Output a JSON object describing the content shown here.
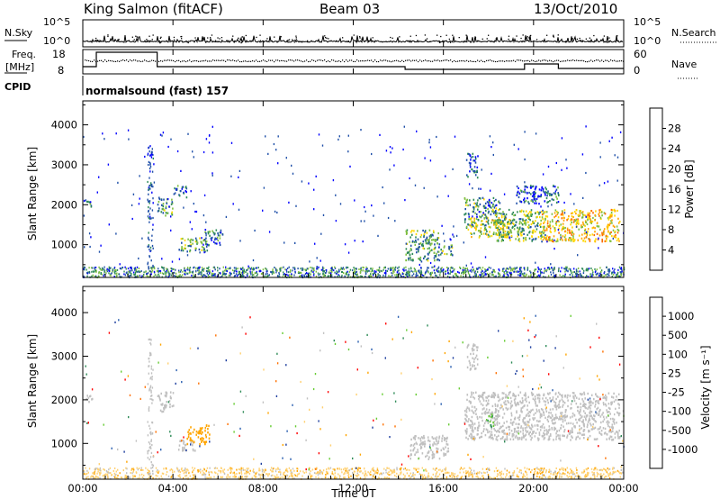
{
  "header": {
    "station": "King Salmon (fitACF)",
    "beam": "Beam 03",
    "date": "13/Oct/2010"
  },
  "top_panels": {
    "nsky_label": "N.Sky",
    "nsky_ticks": [
      "10^5",
      "10^0"
    ],
    "nsearch_label": "N.Search",
    "nsearch_ticks": [
      "10^5",
      "10^0"
    ],
    "freq_label_line1": "Freq.",
    "freq_label_line2": "[MHz]",
    "freq_ticks": [
      "18",
      "8"
    ],
    "nave_label": "Nave",
    "nave_ticks": [
      "60",
      "0"
    ],
    "cpid_label": "CPID",
    "cpid_value": "normalsound (fast) 157"
  },
  "colors": {
    "power_scale": [
      "#0000ff",
      "#1f4fa8",
      "#2e8b57",
      "#7fbf3f",
      "#ffd700",
      "#ffa500",
      "#ff6a00",
      "#ff0000"
    ],
    "velocity_scale": [
      "#1f3f9f",
      "#2a5fb0",
      "#2e8b57",
      "#66cc33",
      "#c0c0c0",
      "#ffd070",
      "#ffa500",
      "#ff7000",
      "#ff0000"
    ],
    "ground_scatter": "#c0c0c0"
  },
  "chart_data": [
    {
      "type": "heatmap",
      "name": "power-panel",
      "ylabel": "Slant Range [km]",
      "yticks": [
        "4000",
        "3000",
        "2000",
        "1000"
      ],
      "colorbar_label": "Power [dB]",
      "colorbar_ticks": [
        "28",
        "24",
        "20",
        "16",
        "12",
        "8",
        "4"
      ],
      "blobs": [
        {
          "t0": 0.1,
          "t1": 0.4,
          "r0": 1950,
          "r1": 2150,
          "v": 8
        },
        {
          "t0": 3.3,
          "t1": 4.0,
          "r0": 1750,
          "r1": 2200,
          "v": 10
        },
        {
          "t0": 4.0,
          "t1": 4.6,
          "r0": 2200,
          "r1": 2500,
          "v": 6
        },
        {
          "t0": 4.2,
          "t1": 5.5,
          "r0": 850,
          "r1": 1200,
          "v": 12
        },
        {
          "t0": 5.4,
          "t1": 6.2,
          "r0": 1000,
          "r1": 1400,
          "v": 8
        },
        {
          "t0": 14.3,
          "t1": 15.8,
          "r0": 600,
          "r1": 1400,
          "v": 11
        },
        {
          "t0": 15.8,
          "t1": 16.4,
          "r0": 750,
          "r1": 1050,
          "v": 12
        },
        {
          "t0": 16.9,
          "t1": 18.5,
          "r0": 1500,
          "r1": 2200,
          "v": 10
        },
        {
          "t0": 17.0,
          "t1": 19.0,
          "r0": 1200,
          "r1": 1700,
          "v": 15
        },
        {
          "t0": 18.2,
          "t1": 20.5,
          "r0": 1100,
          "r1": 1900,
          "v": 13
        },
        {
          "t0": 20.3,
          "t1": 23.8,
          "r0": 1100,
          "r1": 1900,
          "v": 19
        },
        {
          "t0": 19.2,
          "t1": 21.2,
          "r0": 2050,
          "r1": 2500,
          "v": 6
        },
        {
          "t0": 17.0,
          "t1": 17.5,
          "r0": 2700,
          "r1": 3300,
          "v": 5
        }
      ]
    },
    {
      "type": "heatmap",
      "name": "velocity-panel",
      "ylabel": "Slant Range [km]",
      "yticks": [
        "4000",
        "3000",
        "2000",
        "1000"
      ],
      "colorbar_label": "Velocity [m s⁻¹]",
      "colorbar_ticks": [
        "1000",
        "500",
        "100",
        "25",
        "-25",
        "-100",
        "-500",
        "-1000"
      ],
      "blobs": [
        {
          "t0": 0.1,
          "t1": 0.4,
          "r0": 1950,
          "r1": 2150,
          "v": 0
        },
        {
          "t0": 3.3,
          "t1": 4.0,
          "r0": 1750,
          "r1": 2200,
          "v": 0
        },
        {
          "t0": 4.2,
          "t1": 5.0,
          "r0": 850,
          "r1": 1100,
          "v": 0
        },
        {
          "t0": 4.6,
          "t1": 5.6,
          "r0": 1000,
          "r1": 1450,
          "v": -200
        },
        {
          "t0": 14.5,
          "t1": 16.2,
          "r0": 650,
          "r1": 1200,
          "v": 0
        },
        {
          "t0": 16.9,
          "t1": 23.8,
          "r0": 1100,
          "r1": 2200,
          "v": 0
        },
        {
          "t0": 17.9,
          "t1": 18.2,
          "r0": 1400,
          "r1": 1700,
          "v": 150
        },
        {
          "t0": 17.0,
          "t1": 17.5,
          "r0": 2700,
          "r1": 3300,
          "v": 0
        }
      ]
    }
  ],
  "xaxis": {
    "label": "Time UT",
    "ticks": [
      "00:00",
      "04:00",
      "08:00",
      "12:00",
      "16:00",
      "20:00",
      "00:00"
    ],
    "range_hours": [
      0,
      24
    ]
  },
  "yaxis": {
    "range_km": [
      180,
      4600
    ]
  }
}
